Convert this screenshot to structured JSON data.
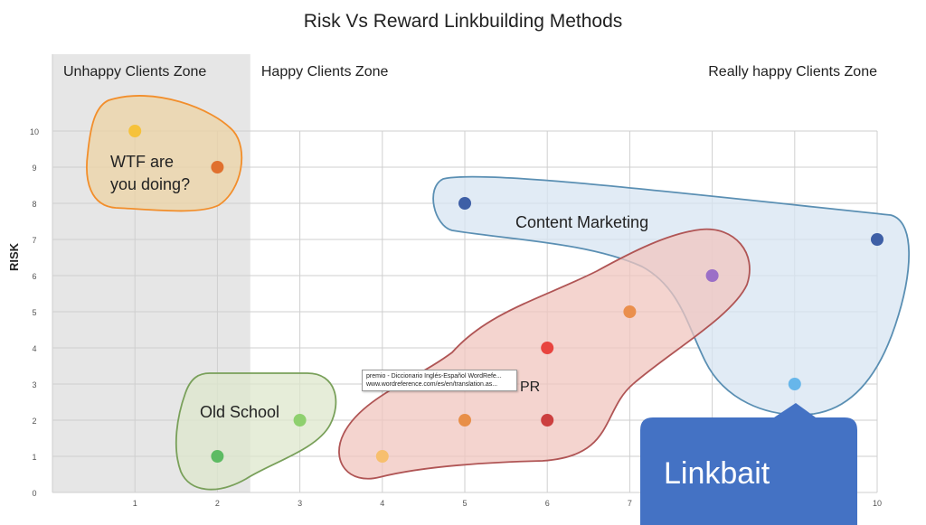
{
  "chart_data": {
    "type": "scatter",
    "title": "Risk Vs Reward Linkbuilding Methods",
    "ylabel": "RISK",
    "xlabel": "",
    "xlim": [
      0,
      10
    ],
    "ylim": [
      0,
      10
    ],
    "x_ticks": [
      "1",
      "2",
      "3",
      "4",
      "5",
      "6",
      "7",
      "10"
    ],
    "y_ticks": [
      "0",
      "1",
      "2",
      "3",
      "4",
      "5",
      "6",
      "7",
      "8",
      "9",
      "10"
    ],
    "grid": true,
    "zones": [
      {
        "label": "Unhappy Clients Zone",
        "x_range": [
          0,
          2.4
        ],
        "fill": "#e6e6e6"
      },
      {
        "label": "Happy Clients Zone",
        "x_range": [
          2.4,
          8.8
        ],
        "fill": "#ffffff"
      },
      {
        "label": "Really happy Clients Zone",
        "x_range": [
          8.8,
          10
        ],
        "fill": "#ffffff"
      }
    ],
    "groups": [
      {
        "label": "WTF are you doing?",
        "fill": "#ecd3a4",
        "stroke": "#f28e2b"
      },
      {
        "label": "Content Marketing",
        "fill": "#d7e4f1",
        "stroke": "#5a8fb3"
      },
      {
        "label": "PR",
        "fill": "#f0c6bf",
        "stroke": "#b05555"
      },
      {
        "label": "Old School",
        "fill": "#dde7cc",
        "stroke": "#79a05a"
      }
    ],
    "points": [
      {
        "x": 1,
        "y": 10,
        "color": "#f6c23a"
      },
      {
        "x": 2,
        "y": 9,
        "color": "#e0702e"
      },
      {
        "x": 5,
        "y": 8,
        "color": "#3e5fa6"
      },
      {
        "x": 10,
        "y": 7,
        "color": "#3e5fa6"
      },
      {
        "x": 8,
        "y": 6,
        "color": "#9b6fc7"
      },
      {
        "x": 7,
        "y": 5,
        "color": "#ea8f4d"
      },
      {
        "x": 6,
        "y": 4,
        "color": "#e8443f"
      },
      {
        "x": 9,
        "y": 3,
        "color": "#67b6ea"
      },
      {
        "x": 5,
        "y": 2,
        "color": "#e88f48"
      },
      {
        "x": 6,
        "y": 2,
        "color": "#cc3f3f"
      },
      {
        "x": 3,
        "y": 2,
        "color": "#8ed06e"
      },
      {
        "x": 2,
        "y": 1,
        "color": "#5dbb63"
      },
      {
        "x": 4,
        "y": 1,
        "color": "#f7bf6e"
      }
    ]
  },
  "tooltip": {
    "line1": "premio - Diccionario Inglés-Español WordRefe...",
    "line2": "www.wordreference.com/es/en/translation.as..."
  },
  "callout": {
    "label": "Linkbait",
    "color": "#4472c4"
  }
}
